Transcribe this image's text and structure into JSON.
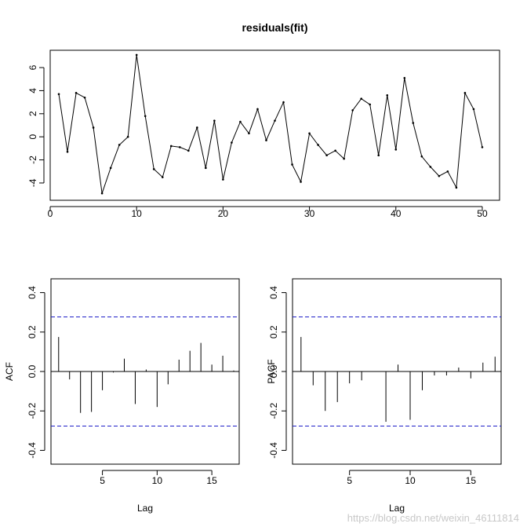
{
  "chart_data": [
    {
      "type": "line",
      "title": "residuals(fit)",
      "xlabel": "",
      "ylabel": "",
      "xlim": [
        0,
        52
      ],
      "ylim": [
        -5.5,
        7.5
      ],
      "x_ticks": [
        "0",
        "10",
        "20",
        "30",
        "40",
        "50"
      ],
      "y_ticks": [
        "-4",
        "-2",
        "0",
        "2",
        "4",
        "6"
      ],
      "series": [
        {
          "x": [
            1,
            2,
            3,
            4,
            5,
            6,
            7,
            8,
            9,
            10,
            11,
            12,
            13,
            14,
            15,
            16,
            17,
            18,
            19,
            20,
            21,
            22,
            23,
            24,
            25,
            26,
            27,
            28,
            29,
            30,
            31,
            32,
            33,
            34,
            35,
            36,
            37,
            38,
            39,
            40,
            41,
            42,
            43,
            44,
            45,
            46,
            47,
            48,
            49,
            50
          ],
          "values": [
            3.7,
            -1.3,
            3.8,
            3.4,
            0.8,
            -4.9,
            -2.7,
            -0.7,
            0.0,
            7.1,
            1.8,
            -2.8,
            -3.5,
            -0.8,
            -0.9,
            -1.2,
            0.8,
            -2.7,
            1.4,
            -3.7,
            -0.5,
            1.3,
            0.3,
            2.4,
            -0.3,
            1.4,
            3.0,
            -2.4,
            -3.9,
            0.3,
            -0.7,
            -1.6,
            -1.2,
            -1.9,
            2.3,
            3.3,
            2.8,
            -1.6,
            3.6,
            -1.1,
            5.1,
            1.2,
            -1.7,
            -2.6,
            -3.4,
            -3.0,
            -4.4,
            3.8,
            2.4,
            -0.9
          ]
        }
      ]
    },
    {
      "type": "bar",
      "title": "",
      "xlabel": "Lag",
      "ylabel": "ACF",
      "xlim": [
        0.3,
        17.5
      ],
      "ylim": [
        -0.47,
        0.47
      ],
      "x_ticks": [
        "5",
        "10",
        "15"
      ],
      "y_ticks": [
        "-0.4",
        "-0.2",
        "0.0",
        "0.2",
        "0.4"
      ],
      "confidence_bounds": [
        0.277,
        -0.277
      ],
      "lags": [
        1,
        2,
        3,
        4,
        5,
        6,
        7,
        8,
        9,
        10,
        11,
        12,
        13,
        14,
        15,
        16,
        17
      ],
      "values": [
        0.175,
        -0.04,
        -0.21,
        -0.205,
        -0.095,
        -0.005,
        0.065,
        -0.165,
        0.01,
        -0.18,
        -0.065,
        0.06,
        0.105,
        0.145,
        0.035,
        0.08,
        0.005
      ]
    },
    {
      "type": "bar",
      "title": "",
      "xlabel": "Lag",
      "ylabel": "PACF",
      "xlim": [
        0.3,
        17.5
      ],
      "ylim": [
        -0.47,
        0.47
      ],
      "x_ticks": [
        "5",
        "10",
        "15"
      ],
      "y_ticks": [
        "-0.4",
        "-0.2",
        "0.0",
        "0.2",
        "0.4"
      ],
      "confidence_bounds": [
        0.277,
        -0.277
      ],
      "lags": [
        1,
        2,
        3,
        4,
        5,
        6,
        7,
        8,
        9,
        10,
        11,
        12,
        13,
        14,
        15,
        16,
        17
      ],
      "values": [
        0.175,
        -0.07,
        -0.2,
        -0.155,
        -0.06,
        -0.045,
        0.0,
        -0.255,
        0.035,
        -0.245,
        -0.095,
        -0.02,
        -0.02,
        0.02,
        -0.035,
        0.045,
        0.075
      ]
    }
  ],
  "watermark": "https://blog.csdn.net/weixin_46111814"
}
